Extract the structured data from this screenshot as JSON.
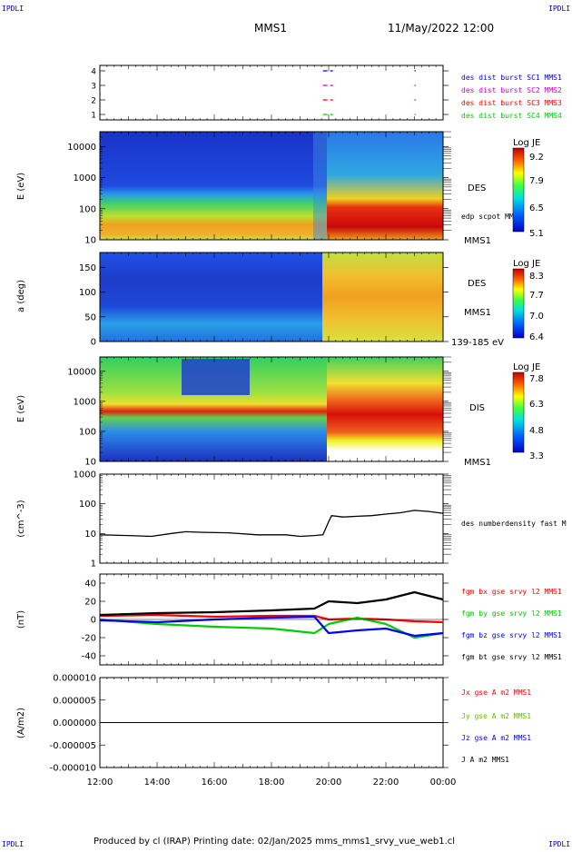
{
  "header": {
    "corner_tl": "IPDLI",
    "corner_tr": "IPDLI",
    "corner_bl": "IPDLI",
    "corner_br": "IPDLI",
    "title": "MMS1",
    "date": "11/May/2022 12:00"
  },
  "footer": {
    "text": "Produced by cl (IRAP)   Printing date: 02/Jan/2025   mms_mms1_srvy_vue_web1.cl"
  },
  "colors": {
    "mms1": "#0000ff",
    "mms2": "#cc00cc",
    "mms3": "#ff0000",
    "mms4": "#00cc00",
    "bx": "#ff0000",
    "by": "#00cc00",
    "bz": "#0000ff",
    "bt": "#000000"
  },
  "chart_data": [
    {
      "type": "line",
      "panel": "burst-availability",
      "yticks": [
        "1",
        "2",
        "3",
        "4"
      ],
      "legend": [
        {
          "label": "des dist burst SC1 MMS1",
          "color": "#0000ff"
        },
        {
          "label": "des dist burst SC2 MMS2",
          "color": "#cc00cc"
        },
        {
          "label": "des dist burst SC3 MMS3",
          "color": "#ff0000"
        },
        {
          "label": "des dist burst SC4 MMS4",
          "color": "#00cc00"
        }
      ],
      "segments": [
        {
          "level": 4,
          "spans": [
            [
              19.8,
              20.15
            ],
            [
              23.0,
              23.05
            ]
          ]
        },
        {
          "level": 3,
          "spans": [
            [
              19.8,
              20.15
            ],
            [
              23.0,
              23.05
            ]
          ]
        },
        {
          "level": 2,
          "spans": [
            [
              19.8,
              20.15
            ],
            [
              23.0,
              23.05
            ]
          ]
        },
        {
          "level": 1,
          "spans": [
            [
              19.8,
              20.15
            ],
            [
              23.0,
              23.05
            ]
          ]
        }
      ]
    },
    {
      "type": "heatmap",
      "panel": "des-energy",
      "ylabel": "E (eV)",
      "yscale": "log",
      "ylim": [
        10,
        30000
      ],
      "yticks": [
        "10",
        "100",
        "1000",
        "10000"
      ],
      "labels": [
        "DES",
        "edp scpot MMS1",
        "MMS1"
      ],
      "colorbar": {
        "title": "Log JE",
        "ticks": [
          "9.2",
          "7.9",
          "6.5",
          "5.1"
        ],
        "range": [
          5.1,
          9.2
        ]
      }
    },
    {
      "type": "heatmap",
      "panel": "des-pitch-angle",
      "ylabel": "a (deg)",
      "ylim": [
        0,
        180
      ],
      "yticks": [
        "0",
        "50",
        "100",
        "150"
      ],
      "labels": [
        "DES",
        "MMS1",
        "139-185 eV"
      ],
      "colorbar": {
        "title": "Log JE",
        "ticks": [
          "8.3",
          "7.7",
          "7.0",
          "6.4"
        ],
        "range": [
          6.4,
          8.3
        ]
      }
    },
    {
      "type": "heatmap",
      "panel": "dis-energy",
      "ylabel": "E (eV)",
      "yscale": "log",
      "ylim": [
        10,
        30000
      ],
      "yticks": [
        "10",
        "100",
        "1000",
        "10000"
      ],
      "labels": [
        "DIS",
        "MMS1"
      ],
      "colorbar": {
        "title": "Log JE",
        "ticks": [
          "7.8",
          "6.3",
          "4.8",
          "3.3"
        ],
        "range": [
          3.3,
          7.8
        ]
      }
    },
    {
      "type": "line",
      "panel": "density",
      "ylabel": "(cm^-3)",
      "yscale": "log",
      "ylim": [
        1,
        1000
      ],
      "yticks": [
        "1",
        "10",
        "100",
        "1000"
      ],
      "series": [
        {
          "name": "des numberdensity fast M",
          "color": "#000000",
          "x": [
            12.0,
            13.0,
            13.8,
            14.5,
            15.0,
            15.5,
            16.5,
            17.5,
            18.5,
            19.0,
            19.5,
            19.8,
            20.0,
            20.1,
            20.5,
            21.0,
            21.5,
            22.0,
            22.5,
            23.0,
            23.5,
            24.0
          ],
          "y": [
            9,
            8.5,
            8,
            10,
            11.5,
            11,
            10.5,
            9,
            9,
            8,
            8.5,
            9,
            25,
            40,
            36,
            38,
            40,
            45,
            50,
            60,
            55,
            48
          ]
        }
      ]
    },
    {
      "type": "line",
      "panel": "magnetic-field",
      "ylabel": "(nT)",
      "ylim": [
        -50,
        50
      ],
      "yticks": [
        "-40",
        "-20",
        "0",
        "20",
        "40"
      ],
      "series": [
        {
          "name": "fgm bx gse srvy l2 MMS1",
          "color": "#ff0000",
          "x": [
            12,
            14,
            16,
            18,
            19.5,
            20,
            21,
            22,
            23,
            24
          ],
          "y": [
            4,
            5,
            3,
            4,
            4,
            0,
            1,
            0,
            -2,
            -3
          ]
        },
        {
          "name": "fgm by gse srvy l2 MMS1",
          "color": "#00cc00",
          "x": [
            12,
            14,
            16,
            18,
            19.5,
            20,
            21,
            22,
            23,
            24
          ],
          "y": [
            0,
            -5,
            -8,
            -10,
            -15,
            -5,
            2,
            -5,
            -20,
            -15
          ]
        },
        {
          "name": "fgm bz gse srvy l2 MMS1",
          "color": "#0000ff",
          "x": [
            12,
            14,
            16,
            18,
            19.5,
            20,
            21,
            22,
            23,
            24
          ],
          "y": [
            -1,
            -3,
            0,
            2,
            3,
            -15,
            -12,
            -10,
            -18,
            -15
          ]
        },
        {
          "name": "fgm bt gse srvy l2 MMS1",
          "color": "#000000",
          "x": [
            12,
            14,
            16,
            18,
            19.5,
            20,
            21,
            22,
            23,
            24
          ],
          "y": [
            5,
            7,
            8,
            10,
            12,
            20,
            18,
            22,
            30,
            22
          ]
        }
      ]
    },
    {
      "type": "line",
      "panel": "current-density",
      "ylabel": "(A/m2)",
      "ylim": [
        -1e-05,
        1e-05
      ],
      "yticks": [
        "-0.000010",
        "-0.000005",
        "0.000000",
        "0.000005",
        "0.000010"
      ],
      "series": [
        {
          "name": "Jx gse A m2 MMS1",
          "color": "#ff0000",
          "x": [
            12,
            20,
            22.2,
            23,
            24
          ],
          "y": [
            0,
            0,
            0,
            0,
            0
          ]
        },
        {
          "name": "Jy gse A m2 MMS1",
          "color": "#00cc00",
          "x": [
            12,
            20,
            22.2,
            23,
            24
          ],
          "y": [
            0,
            0,
            0,
            0,
            0
          ]
        },
        {
          "name": "Jz gse A m2 MMS1",
          "color": "#0000ff",
          "x": [
            12,
            20,
            22.2,
            23,
            24
          ],
          "y": [
            0,
            0,
            0,
            0,
            0
          ]
        },
        {
          "name": "J A m2 MMS1",
          "color": "#000000",
          "x": [
            12,
            20,
            22.2,
            23,
            24
          ],
          "y": [
            0,
            0,
            0,
            0,
            0
          ]
        }
      ]
    }
  ],
  "xaxis": {
    "ticks": [
      "12:00",
      "14:00",
      "16:00",
      "18:00",
      "20:00",
      "22:00",
      "00:00"
    ],
    "range": [
      12,
      24
    ]
  }
}
